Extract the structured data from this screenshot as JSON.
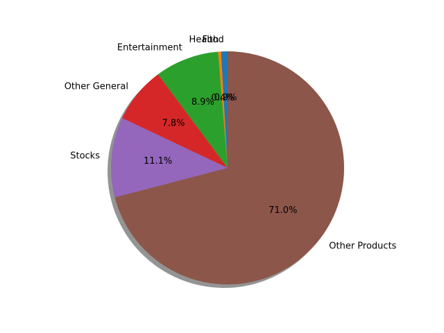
{
  "chart_data": {
    "type": "pie",
    "labels": [
      "Food",
      "Health",
      "Entertainment",
      "Other General",
      "Stocks",
      "Other Products"
    ],
    "values": [
      0.9,
      0.4,
      8.9,
      7.8,
      11.1,
      71.0
    ],
    "percent_labels": [
      "0.9%",
      "0.4%",
      "8.9%",
      "7.8%",
      "11.1%",
      "71.0%"
    ],
    "colors": [
      "#1f77b4",
      "#ff7f0e",
      "#2ca02c",
      "#d62728",
      "#9467bd",
      "#8c564b"
    ],
    "start_angle_deg": 90,
    "direction": "counterclockwise",
    "shadow": true
  }
}
